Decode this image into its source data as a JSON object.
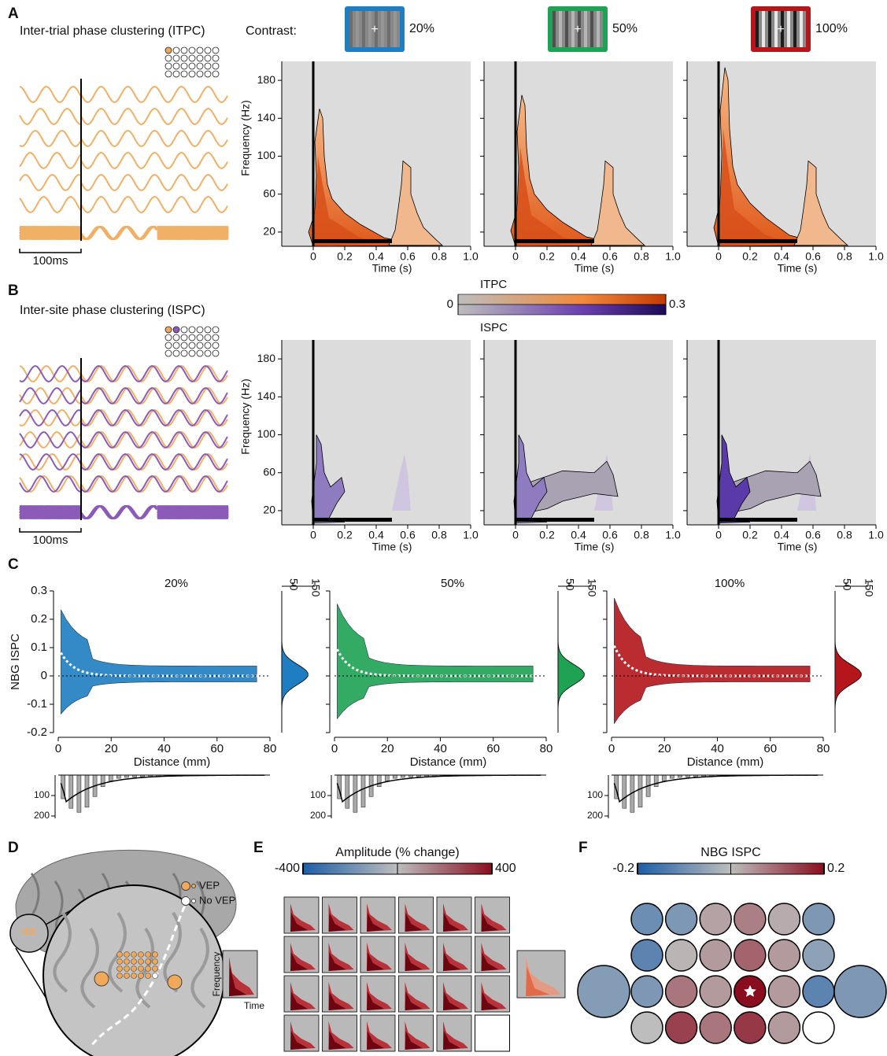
{
  "panel_labels": [
    "A",
    "B",
    "C",
    "D",
    "E",
    "F"
  ],
  "A": {
    "title": "Inter-trial phase clustering (ITPC)",
    "scale_bar": "100ms",
    "contrast_label": "Contrast:",
    "contrasts": [
      "20%",
      "50%",
      "100%"
    ],
    "contrast_colors": [
      "#1f7ec1",
      "#1fa254",
      "#b4161b"
    ],
    "xlabel": "Time (s)",
    "ylabel": "Frequency (Hz)"
  },
  "B": {
    "title": "Inter-site phase clustering (ISPC)",
    "scale_bar": "100ms",
    "xlabel": "Time (s)",
    "ylabel": "Frequency (Hz)",
    "colorbar": {
      "labels": [
        "ITPC",
        "ISPC"
      ],
      "min": 0,
      "max": 0.3
    }
  },
  "tf_axes": {
    "xlim": [
      -0.2,
      1.0
    ],
    "ylim": [
      5,
      200
    ],
    "xticks": [
      0,
      0.2,
      0.4,
      0.6,
      0.8,
      {
        "value": 1,
        "label": "1.0"
      }
    ],
    "yticks": [
      20,
      60,
      100,
      140,
      180
    ]
  },
  "C": {
    "titles": [
      "20%",
      "50%",
      "100%"
    ],
    "colors": [
      "#1f7ec1",
      "#1fa254",
      "#b4161b"
    ],
    "xlabel": "Distance (mm)",
    "ylabel": "NBG ISPC",
    "xlim": [
      0,
      80
    ],
    "ylim": [
      -0.2,
      0.3
    ],
    "xticks": [
      0,
      20,
      40,
      60,
      80
    ],
    "yticks": [
      -0.2,
      -0.1,
      0,
      0.1,
      0.2,
      0.3
    ],
    "side_hist_lim": [
      0,
      150
    ],
    "side_hist_ticks": [
      50,
      150
    ],
    "bottom_hist_lim": [
      0,
      200
    ],
    "bottom_hist_ticks": [
      100,
      200
    ]
  },
  "D": {
    "legend": [
      "VEP",
      "No VEP"
    ]
  },
  "E": {
    "colorbar_title": "Amplitude (% change)",
    "min": -400,
    "max": 400,
    "ylabel": "Frequency",
    "xlabel": "Time"
  },
  "F": {
    "colorbar_title": "NBG ISPC",
    "min": -0.2,
    "max": 0.2,
    "grid": [
      [
        -0.1,
        -0.08,
        0.03,
        0.07,
        0.02,
        -0.08
      ],
      [
        -0.12,
        0.01,
        0.04,
        0.1,
        0.04,
        -0.06
      ],
      [
        -0.08,
        0.08,
        0.04,
        0.2,
        0.04,
        -0.12
      ],
      [
        0,
        0.14,
        0.08,
        0.15,
        0.04,
        null
      ]
    ],
    "side": [
      -0.07,
      -0.08
    ]
  }
}
